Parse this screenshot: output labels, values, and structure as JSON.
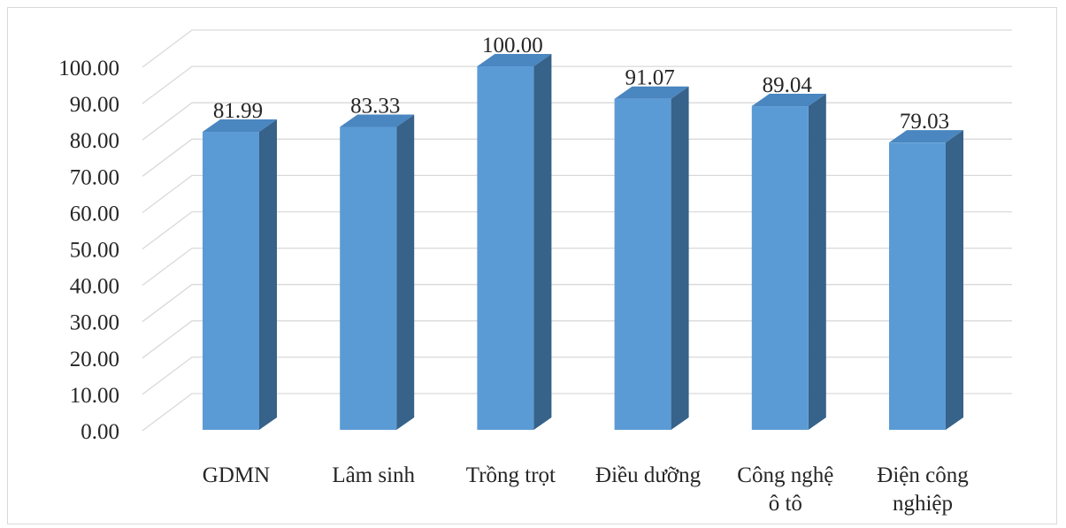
{
  "chart_data": {
    "type": "bar",
    "style": "3d-column",
    "categories": [
      [
        "GDMN"
      ],
      [
        "Lâm sinh"
      ],
      [
        "Trồng trọt"
      ],
      [
        "Điều dưỡng"
      ],
      [
        "Công nghệ",
        "ô tô"
      ],
      [
        "Điện công",
        "nghiệp"
      ]
    ],
    "values": [
      81.99,
      83.33,
      100.0,
      91.07,
      89.04,
      79.03
    ],
    "value_labels": [
      "81.99",
      "83.33",
      "100.00",
      "91.07",
      "89.04",
      "79.03"
    ],
    "ylim": [
      0,
      100
    ],
    "ytick_step": 10,
    "ytick_labels": [
      "0.00",
      "10.00",
      "20.00",
      "30.00",
      "40.00",
      "50.00",
      "60.00",
      "70.00",
      "80.00",
      "90.00",
      "100.00"
    ],
    "grid": true,
    "legend": "none",
    "colors": {
      "bar_front": "#5b9bd5",
      "bar_side": "#376289",
      "bar_top": "#4a86c0",
      "gridline": "#d9d9d9",
      "text": "#262626"
    }
  }
}
